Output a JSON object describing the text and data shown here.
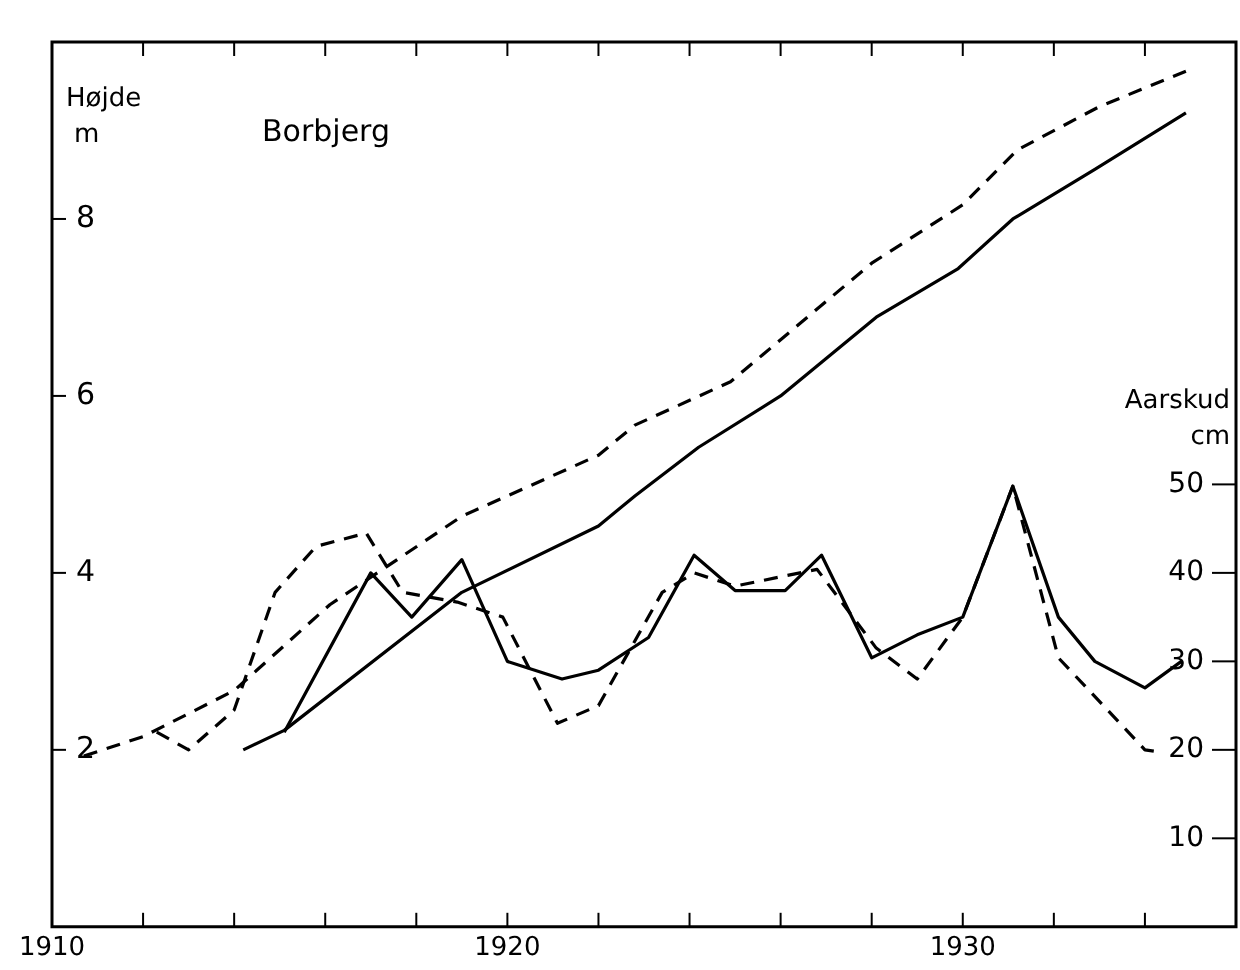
{
  "chart_data": {
    "type": "line",
    "title": "Borbjerg",
    "ylabel": "Højde\nm",
    "y2label": "Aarskud\ncm",
    "xlim": [
      1910,
      1936
    ],
    "xticks": [
      {
        "value": 1910,
        "label": "1910"
      },
      {
        "value": 1912,
        "label": null
      },
      {
        "value": 1914,
        "label": null
      },
      {
        "value": 1916,
        "label": null
      },
      {
        "value": 1918,
        "label": null
      },
      {
        "value": 1920,
        "label": "1920"
      },
      {
        "value": 1922,
        "label": null
      },
      {
        "value": 1924,
        "label": null
      },
      {
        "value": 1926,
        "label": null
      },
      {
        "value": 1928,
        "label": null
      },
      {
        "value": 1930,
        "label": "1930"
      },
      {
        "value": 1932,
        "label": null
      },
      {
        "value": 1934,
        "label": null
      }
    ],
    "ylim": [
      0,
      10
    ],
    "yticks": [
      2,
      4,
      6,
      8
    ],
    "y2lim": [
      0,
      100
    ],
    "y2ticks": [
      10,
      20,
      30,
      40,
      50
    ],
    "grid": false,
    "legend": false,
    "marker": "none",
    "series": [
      {
        "color": "#000000",
        "line_style": "dashed",
        "x": [
          1910.7,
          1912,
          1914,
          1916.1,
          1919,
          1922,
          1922.8,
          1924.9,
          1928,
          1930,
          1931.2,
          1933,
          1934.9
        ],
        "values": [
          1.93,
          2.15,
          2.67,
          3.64,
          4.64,
          5.33,
          5.67,
          6.16,
          7.5,
          8.16,
          8.78,
          9.27,
          9.67
        ]
      },
      {
        "color": "#000000",
        "line_style": "solid",
        "x": [
          1914.2,
          1915.1,
          1919,
          1922,
          1922.8,
          1924.2,
          1926,
          1928.1,
          1929.9,
          1931.1,
          1932.9,
          1934.9
        ],
        "values": [
          2.0,
          2.22,
          3.78,
          4.53,
          4.87,
          5.42,
          6.0,
          6.89,
          7.44,
          8.0,
          8.56,
          9.2
        ]
      },
      {
        "color": "#000000",
        "line_style": "solid",
        "axis": "y2",
        "x": [
          1915.1,
          1917,
          1917.9,
          1919,
          1920,
          1921.2,
          1922,
          1923.1,
          1924.1,
          1925,
          1926.1,
          1926.9,
          1928,
          1929,
          1930,
          1931.1,
          1932.1,
          1932.9,
          1934,
          1934.8
        ],
        "values": [
          22,
          40,
          35,
          41.5,
          30,
          28,
          29,
          32.7,
          42,
          38,
          38,
          42,
          30.4,
          33,
          35,
          49.8,
          35,
          30,
          27,
          30
        ]
      },
      {
        "color": "#000000",
        "line_style": "dashed",
        "axis": "y2",
        "x": [
          1912.3,
          1913,
          1914,
          1914.9,
          1915.8,
          1916.9,
          1917.7,
          1918.9,
          1919.9,
          1921.1,
          1922,
          1923.4,
          1924.1,
          1925,
          1926.8,
          1928.1,
          1929,
          1930,
          1931.1,
          1932.1,
          1934,
          1934.4
        ],
        "values": [
          22,
          20,
          24.5,
          37.8,
          43,
          44.5,
          37.8,
          36.7,
          35,
          23,
          25,
          37.8,
          40,
          38.5,
          40.4,
          31.5,
          28,
          35,
          49.8,
          30.4,
          20,
          19.7
        ]
      }
    ]
  }
}
